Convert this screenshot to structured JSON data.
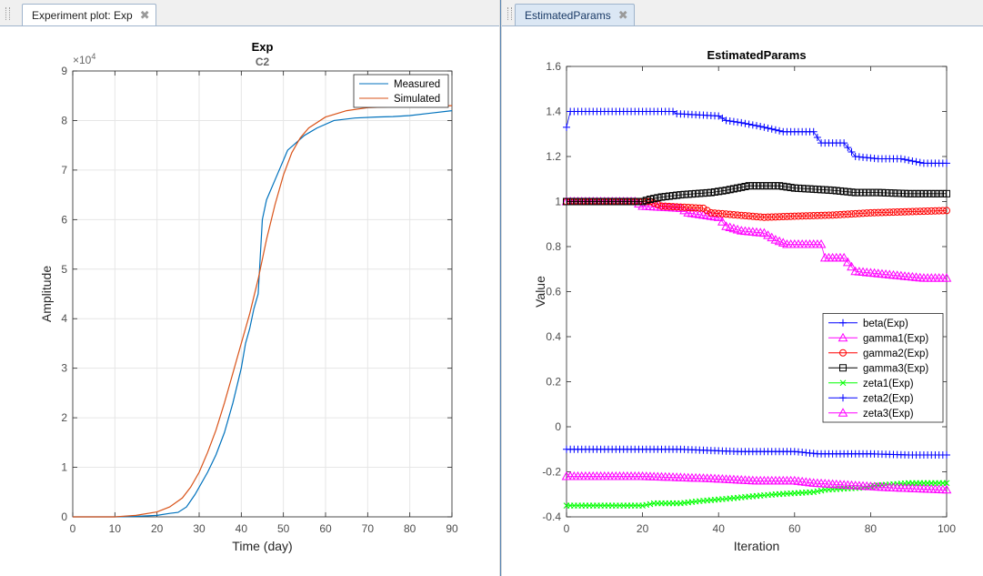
{
  "tabs": {
    "left": {
      "label": "Experiment plot: Exp",
      "close": "✖"
    },
    "right": {
      "label": "EstimatedParams",
      "close": "✖"
    }
  },
  "chart_data": [
    {
      "type": "line",
      "title": "Exp",
      "subtitle": "C2",
      "xlabel": "Time (day)",
      "ylabel": "Amplitude",
      "exponent_label": "×10",
      "exponent_power": "4",
      "xlim": [
        0,
        90
      ],
      "ylim": [
        0,
        90000
      ],
      "xticks": [
        0,
        10,
        20,
        30,
        40,
        50,
        60,
        70,
        80,
        90
      ],
      "yticks": [
        0,
        10000,
        20000,
        30000,
        40000,
        50000,
        60000,
        70000,
        80000,
        90000
      ],
      "ytick_labels": [
        "0",
        "1",
        "2",
        "3",
        "4",
        "5",
        "6",
        "7",
        "8",
        "9"
      ],
      "grid": true,
      "legend": "top-right",
      "series": [
        {
          "name": "Measured",
          "color": "#0072bd",
          "points": [
            [
              0,
              0
            ],
            [
              10,
              0
            ],
            [
              15,
              100
            ],
            [
              20,
              300
            ],
            [
              23,
              700
            ],
            [
              25,
              900
            ],
            [
              27,
              2000
            ],
            [
              29,
              4500
            ],
            [
              32,
              9000
            ],
            [
              34,
              12500
            ],
            [
              36,
              17000
            ],
            [
              38,
              23000
            ],
            [
              40,
              30000
            ],
            [
              41,
              35000
            ],
            [
              42,
              38000
            ],
            [
              43,
              42000
            ],
            [
              44,
              45000
            ],
            [
              45,
              60000
            ],
            [
              46,
              64000
            ],
            [
              48,
              68000
            ],
            [
              50,
              72000
            ],
            [
              51,
              74000
            ],
            [
              53,
              75500
            ],
            [
              55,
              77000
            ],
            [
              58,
              78500
            ],
            [
              62,
              80000
            ],
            [
              67,
              80500
            ],
            [
              72,
              80700
            ],
            [
              76,
              80800
            ],
            [
              80,
              81000
            ],
            [
              85,
              81500
            ],
            [
              90,
              82000
            ]
          ]
        },
        {
          "name": "Simulated",
          "color": "#d95319",
          "points": [
            [
              0,
              0
            ],
            [
              10,
              0
            ],
            [
              15,
              300
            ],
            [
              20,
              1000
            ],
            [
              23,
              2000
            ],
            [
              26,
              3800
            ],
            [
              28,
              6000
            ],
            [
              30,
              9000
            ],
            [
              32,
              13000
            ],
            [
              34,
              17500
            ],
            [
              36,
              23000
            ],
            [
              38,
              29000
            ],
            [
              40,
              35000
            ],
            [
              42,
              41000
            ],
            [
              44,
              48000
            ],
            [
              46,
              56000
            ],
            [
              48,
              63000
            ],
            [
              50,
              69000
            ],
            [
              52,
              73500
            ],
            [
              54,
              76500
            ],
            [
              56,
              78500
            ],
            [
              60,
              80700
            ],
            [
              65,
              82000
            ],
            [
              70,
              82600
            ],
            [
              80,
              82900
            ],
            [
              90,
              83000
            ]
          ]
        }
      ]
    },
    {
      "type": "line",
      "title": "EstimatedParams",
      "xlabel": "Iteration",
      "ylabel": "Value",
      "xlim": [
        0,
        100
      ],
      "ylim": [
        -0.4,
        1.6
      ],
      "xticks": [
        0,
        20,
        40,
        60,
        80,
        100
      ],
      "yticks": [
        -0.4,
        -0.2,
        0,
        0.2,
        0.4,
        0.6,
        0.8,
        1,
        1.2,
        1.4,
        1.6
      ],
      "ytick_labels": [
        "-0.4",
        "-0.2",
        "0",
        "0.2",
        "0.4",
        "0.6",
        "0.8",
        "1",
        "1.2",
        "1.4",
        "1.6"
      ],
      "grid": false,
      "legend": "bottom-right",
      "series": [
        {
          "name": "beta(Exp)",
          "color": "#0000ff",
          "marker": "plus",
          "points": [
            [
              0,
              1.33
            ],
            [
              1,
              1.4
            ],
            [
              28,
              1.4
            ],
            [
              29,
              1.39
            ],
            [
              40,
              1.38
            ],
            [
              42,
              1.36
            ],
            [
              46,
              1.35
            ],
            [
              52,
              1.33
            ],
            [
              57,
              1.31
            ],
            [
              65,
              1.31
            ],
            [
              67,
              1.26
            ],
            [
              73,
              1.26
            ],
            [
              76,
              1.2
            ],
            [
              82,
              1.19
            ],
            [
              88,
              1.19
            ],
            [
              94,
              1.17
            ],
            [
              100,
              1.17
            ]
          ]
        },
        {
          "name": "gamma1(Exp)",
          "color": "#ff00ff",
          "marker": "triangle",
          "points": [
            [
              0,
              1.0
            ],
            [
              18,
              1.0
            ],
            [
              20,
              0.98
            ],
            [
              30,
              0.97
            ],
            [
              32,
              0.95
            ],
            [
              40,
              0.93
            ],
            [
              42,
              0.89
            ],
            [
              46,
              0.87
            ],
            [
              52,
              0.86
            ],
            [
              55,
              0.83
            ],
            [
              58,
              0.81
            ],
            [
              67,
              0.81
            ],
            [
              68,
              0.75
            ],
            [
              73,
              0.75
            ],
            [
              76,
              0.69
            ],
            [
              82,
              0.68
            ],
            [
              88,
              0.67
            ],
            [
              94,
              0.66
            ],
            [
              100,
              0.66
            ]
          ]
        },
        {
          "name": "gamma2(Exp)",
          "color": "#ff0000",
          "marker": "circle",
          "points": [
            [
              0,
              1.0
            ],
            [
              22,
              1.0
            ],
            [
              25,
              0.98
            ],
            [
              36,
              0.97
            ],
            [
              38,
              0.95
            ],
            [
              45,
              0.94
            ],
            [
              52,
              0.93
            ],
            [
              60,
              0.935
            ],
            [
              70,
              0.94
            ],
            [
              80,
              0.95
            ],
            [
              90,
              0.955
            ],
            [
              100,
              0.96
            ]
          ]
        },
        {
          "name": "gamma3(Exp)",
          "color": "#000000",
          "marker": "square",
          "points": [
            [
              0,
              1.0
            ],
            [
              20,
              1.0
            ],
            [
              22,
              1.01
            ],
            [
              25,
              1.02
            ],
            [
              30,
              1.03
            ],
            [
              38,
              1.04
            ],
            [
              42,
              1.05
            ],
            [
              48,
              1.07
            ],
            [
              56,
              1.07
            ],
            [
              60,
              1.06
            ],
            [
              70,
              1.05
            ],
            [
              76,
              1.04
            ],
            [
              82,
              1.04
            ],
            [
              90,
              1.035
            ],
            [
              100,
              1.035
            ]
          ]
        },
        {
          "name": "zeta1(Exp)",
          "color": "#00ff00",
          "marker": "x",
          "points": [
            [
              0,
              -0.35
            ],
            [
              20,
              -0.35
            ],
            [
              23,
              -0.34
            ],
            [
              30,
              -0.34
            ],
            [
              35,
              -0.33
            ],
            [
              42,
              -0.32
            ],
            [
              48,
              -0.31
            ],
            [
              55,
              -0.3
            ],
            [
              65,
              -0.29
            ],
            [
              68,
              -0.28
            ],
            [
              78,
              -0.27
            ],
            [
              82,
              -0.26
            ],
            [
              90,
              -0.25
            ],
            [
              100,
              -0.25
            ]
          ]
        },
        {
          "name": "zeta2(Exp)",
          "color": "#0000ff",
          "marker": "plus",
          "points": [
            [
              0,
              -0.1
            ],
            [
              30,
              -0.1
            ],
            [
              45,
              -0.11
            ],
            [
              60,
              -0.11
            ],
            [
              66,
              -0.12
            ],
            [
              80,
              -0.12
            ],
            [
              90,
              -0.125
            ],
            [
              100,
              -0.125
            ]
          ]
        },
        {
          "name": "zeta3(Exp)",
          "color": "#ff00ff",
          "marker": "triangle",
          "points": [
            [
              0,
              -0.22
            ],
            [
              20,
              -0.22
            ],
            [
              38,
              -0.23
            ],
            [
              50,
              -0.24
            ],
            [
              60,
              -0.24
            ],
            [
              65,
              -0.25
            ],
            [
              75,
              -0.26
            ],
            [
              85,
              -0.27
            ],
            [
              100,
              -0.28
            ]
          ]
        }
      ]
    }
  ]
}
